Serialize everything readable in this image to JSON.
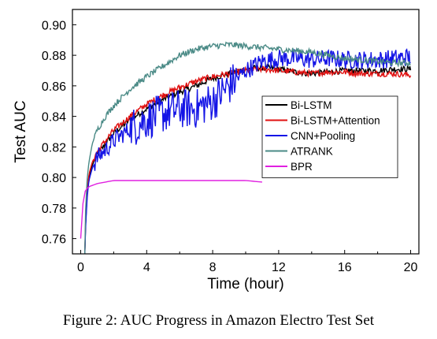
{
  "caption": "Figure 2: AUC Progress in Amazon Electro Test Set",
  "chart_data": {
    "type": "line",
    "xlabel": "Time (hour)",
    "ylabel": "Test AUC",
    "xlim": [
      -0.5,
      20.5
    ],
    "ylim": [
      0.75,
      0.91
    ],
    "xticks": [
      0,
      4,
      8,
      12,
      16,
      20
    ],
    "yticks": [
      0.76,
      0.78,
      0.8,
      0.82,
      0.84,
      0.86,
      0.88,
      0.9
    ],
    "ytick_labels": [
      "0.76",
      "0.78",
      "0.80",
      "0.82",
      "0.84",
      "0.86",
      "0.88",
      "0.90"
    ],
    "grid": false,
    "legend_position": "right",
    "series": [
      {
        "name": "Bi-LSTM",
        "color": "#000000",
        "x": [
          0.25,
          0.3,
          0.4,
          0.5,
          0.7,
          1.0,
          1.5,
          2,
          3,
          4,
          5,
          6,
          7,
          8,
          9,
          10,
          11,
          12,
          13,
          14,
          15,
          16,
          17,
          18,
          19,
          20
        ],
        "y": [
          0.75,
          0.77,
          0.79,
          0.8,
          0.808,
          0.815,
          0.822,
          0.829,
          0.838,
          0.845,
          0.851,
          0.856,
          0.86,
          0.865,
          0.868,
          0.871,
          0.872,
          0.871,
          0.869,
          0.868,
          0.869,
          0.87,
          0.87,
          0.87,
          0.871,
          0.871
        ],
        "noise": 0.002
      },
      {
        "name": "Bi-LSTM+Attention",
        "color": "#e01010",
        "x": [
          0.25,
          0.3,
          0.4,
          0.5,
          0.7,
          1.0,
          1.5,
          2,
          3,
          4,
          5,
          6,
          7,
          8,
          9,
          10,
          11,
          12,
          13,
          14,
          15,
          16,
          17,
          18,
          19,
          20
        ],
        "y": [
          0.75,
          0.772,
          0.792,
          0.802,
          0.81,
          0.817,
          0.824,
          0.831,
          0.84,
          0.848,
          0.854,
          0.859,
          0.863,
          0.866,
          0.868,
          0.87,
          0.871,
          0.87,
          0.869,
          0.868,
          0.869,
          0.869,
          0.868,
          0.868,
          0.868,
          0.867
        ],
        "noise": 0.002
      },
      {
        "name": "CNN+Pooling",
        "color": "#1414e6",
        "x": [
          0.25,
          0.3,
          0.4,
          0.5,
          0.7,
          1.0,
          1.5,
          2,
          3,
          4,
          5,
          6,
          7,
          8,
          9,
          10,
          11,
          12,
          13,
          14,
          15,
          16,
          17,
          18,
          19,
          20
        ],
        "y": [
          0.75,
          0.768,
          0.788,
          0.798,
          0.806,
          0.813,
          0.818,
          0.824,
          0.832,
          0.838,
          0.842,
          0.845,
          0.845,
          0.85,
          0.86,
          0.87,
          0.876,
          0.878,
          0.878,
          0.877,
          0.878,
          0.877,
          0.877,
          0.877,
          0.878,
          0.879
        ],
        "noise": 0.006
      },
      {
        "name": "ATRANK",
        "color": "#4a8a86",
        "x": [
          0.25,
          0.3,
          0.4,
          0.5,
          0.7,
          1.0,
          1.5,
          2,
          3,
          4,
          5,
          6,
          7,
          8,
          9,
          10,
          11,
          12,
          13,
          14,
          15,
          16,
          17,
          18,
          19,
          20
        ],
        "y": [
          0.75,
          0.78,
          0.8,
          0.81,
          0.822,
          0.831,
          0.84,
          0.847,
          0.858,
          0.866,
          0.873,
          0.88,
          0.884,
          0.886,
          0.887,
          0.886,
          0.885,
          0.884,
          0.883,
          0.882,
          0.88,
          0.878,
          0.877,
          0.876,
          0.875,
          0.875
        ],
        "noise": 0.002
      },
      {
        "name": "BPR",
        "color": "#e020e0",
        "x": [
          0,
          0.1,
          0.2,
          0.3,
          0.5,
          1.0,
          1.5,
          2,
          3,
          4,
          5,
          6,
          7,
          8,
          9,
          10,
          11
        ],
        "y": [
          0.76,
          0.78,
          0.788,
          0.792,
          0.794,
          0.796,
          0.797,
          0.798,
          0.798,
          0.798,
          0.798,
          0.798,
          0.798,
          0.798,
          0.798,
          0.798,
          0.797
        ],
        "noise": 0.0
      }
    ]
  }
}
